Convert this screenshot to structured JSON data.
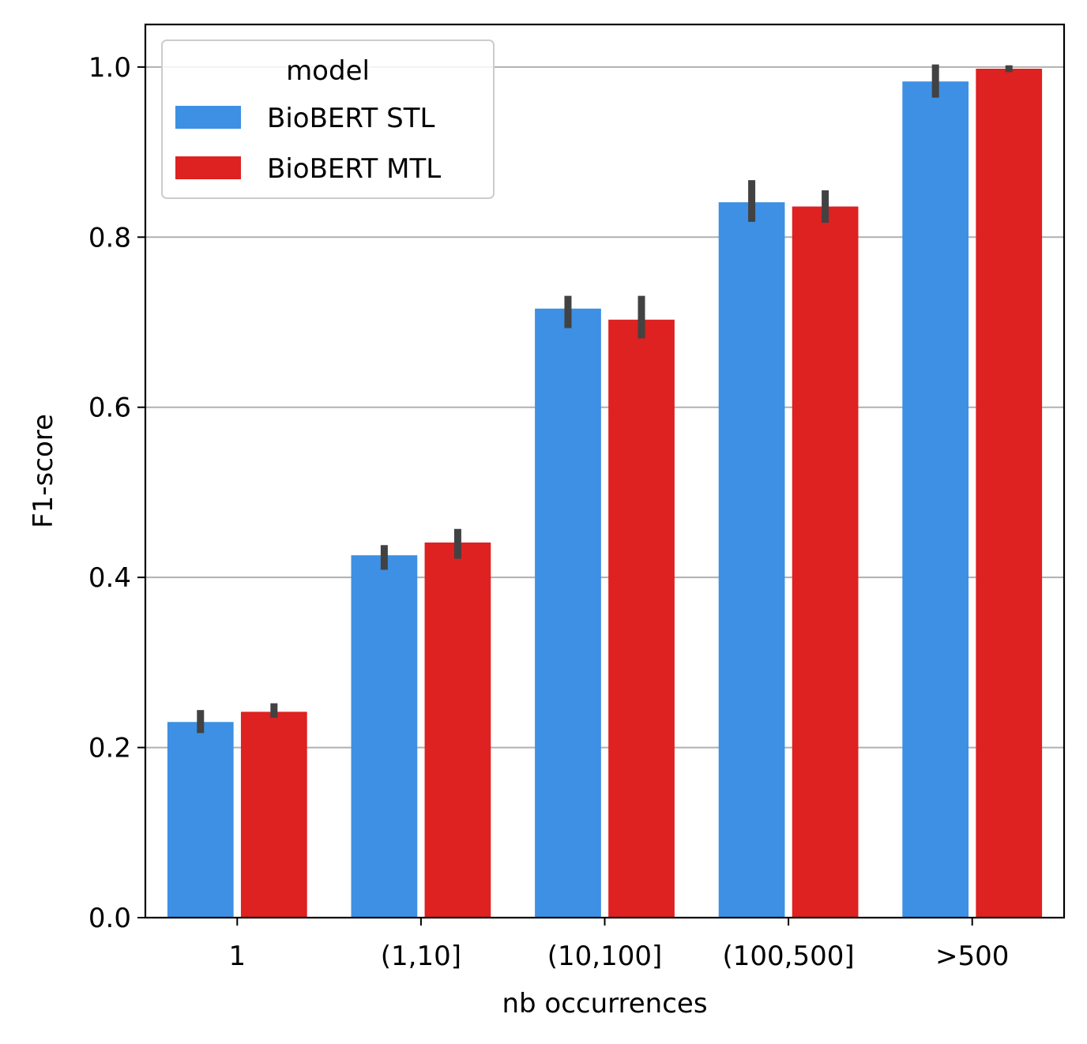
{
  "chart_data": {
    "type": "bar",
    "xlabel": "nb occurrences",
    "ylabel": "F1-score",
    "ylim": [
      0,
      1.05
    ],
    "yticks": [
      "0.0",
      "0.2",
      "0.4",
      "0.6",
      "0.8",
      "1.0"
    ],
    "grid": "y",
    "categories": [
      "1",
      "(1,10]",
      "(10,100]",
      "(100,500]",
      ">500"
    ],
    "legend": {
      "title": "model",
      "placement": "top-left"
    },
    "series": [
      {
        "name": "BioBERT STL",
        "color": "#3d90e3",
        "values": [
          0.23,
          0.426,
          0.716,
          0.841,
          0.983
        ],
        "error_low": [
          0.217,
          0.409,
          0.693,
          0.818,
          0.964
        ],
        "error_high": [
          0.244,
          0.438,
          0.731,
          0.867,
          1.003
        ]
      },
      {
        "name": "BioBERT MTL",
        "color": "#de2121",
        "values": [
          0.242,
          0.441,
          0.703,
          0.836,
          0.998
        ],
        "error_low": [
          0.235,
          0.422,
          0.681,
          0.817,
          0.994
        ],
        "error_high": [
          0.252,
          0.457,
          0.731,
          0.855,
          1.002
        ]
      }
    ],
    "errorbar_color": "#424242",
    "gridline_color": "#b0b0b0"
  }
}
